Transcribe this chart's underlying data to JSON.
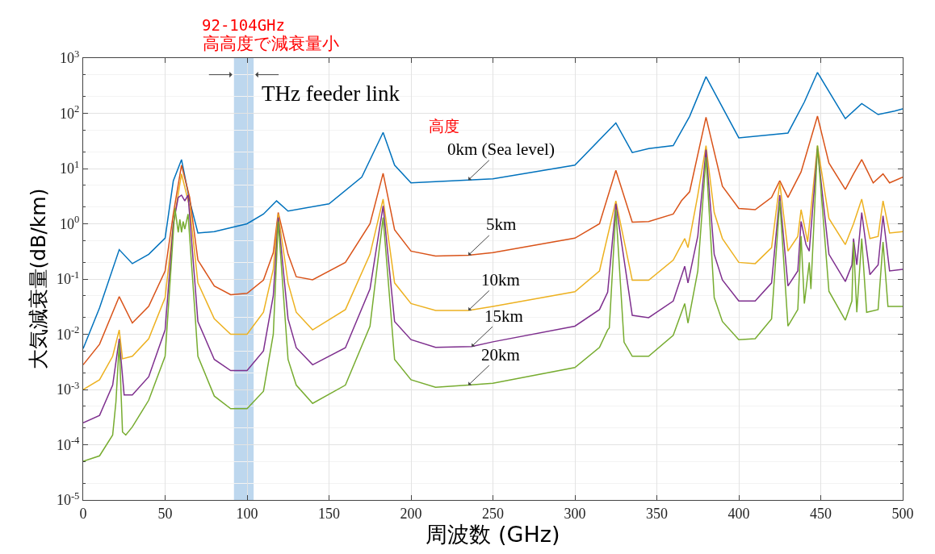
{
  "chart_data": {
    "type": "line",
    "xlabel": "周波数 (GHz)",
    "ylabel": "大気減衰量(dB/km)",
    "xlim": [
      0,
      500
    ],
    "xticks": [
      0,
      50,
      100,
      150,
      200,
      250,
      300,
      350,
      400,
      450,
      500
    ],
    "ylim": [
      1e-05,
      1000
    ],
    "log": true,
    "yticks": [
      {
        "value": 1e-05,
        "label": "10$^{-5}$"
      },
      {
        "value": 0.0001,
        "label": "10$^{-4}$"
      },
      {
        "value": 0.001,
        "label": "10$^{-3}$"
      },
      {
        "value": 0.01,
        "label": "10$^{-2}$"
      },
      {
        "value": 0.1,
        "label": "10$^{-1}$"
      },
      {
        "value": 1,
        "label": "10$^{0}$"
      },
      {
        "value": 10,
        "label": "10$^{1}$"
      },
      {
        "value": 100,
        "label": "10$^{2}$"
      },
      {
        "value": 1000,
        "label": "10$^{3}$"
      }
    ],
    "grid": true,
    "legend": "center",
    "marker": "none",
    "line_style": "solid",
    "bands": [
      {
        "axis": "x",
        "from": 92,
        "to": 104,
        "label": "92-104GHz",
        "color": "#bdd7ee"
      }
    ],
    "annotations": [
      "高高度で減衰量小",
      "THz feeder link",
      "高度"
    ],
    "series": [
      {
        "name": "0km (Sea level)",
        "color": "#0072bd",
        "x": [
          0,
          10,
          22,
          30,
          40,
          50,
          55,
          60,
          65,
          70,
          80,
          100,
          110,
          118,
          125,
          150,
          170,
          183,
          190,
          200,
          235,
          250,
          300,
          325,
          335,
          345,
          360,
          370,
          380,
          400,
          430,
          440,
          448,
          465,
          475,
          485,
          495,
          500
        ],
        "values": [
          0.0055,
          0.03,
          0.34,
          0.19,
          0.28,
          0.55,
          6,
          14.5,
          2.6,
          0.68,
          0.72,
          1.0,
          1.5,
          2.6,
          1.7,
          2.3,
          7,
          45,
          11.5,
          5.5,
          6.2,
          6.5,
          11.5,
          67,
          19.5,
          23,
          26,
          88,
          460,
          36,
          44,
          160,
          550,
          80,
          150,
          95,
          110,
          120
        ]
      },
      {
        "name": "5km",
        "color": "#d95319",
        "x": [
          0,
          10,
          22,
          30,
          40,
          50,
          55,
          60,
          65,
          70,
          80,
          90,
          100,
          110,
          116,
          119,
          125,
          130,
          140,
          160,
          175,
          183,
          190,
          200,
          215,
          235,
          250,
          300,
          315,
          325,
          335,
          345,
          360,
          365,
          370,
          380,
          390,
          400,
          410,
          420,
          425,
          430,
          438,
          448,
          455,
          465,
          470,
          475,
          482,
          488,
          492,
          500
        ],
        "values": [
          0.0028,
          0.0066,
          0.048,
          0.016,
          0.032,
          0.14,
          1.5,
          11.5,
          3,
          0.22,
          0.075,
          0.052,
          0.055,
          0.096,
          0.3,
          1.6,
          0.28,
          0.11,
          0.097,
          0.2,
          1,
          8.2,
          0.78,
          0.32,
          0.26,
          0.27,
          0.3,
          0.55,
          1,
          9.3,
          1.07,
          1.1,
          1.5,
          2.6,
          3.8,
          85,
          4.8,
          1.9,
          1.8,
          3,
          6,
          3,
          8.7,
          89,
          12.6,
          4.2,
          8,
          14.5,
          5.5,
          8,
          5.5,
          7
        ]
      },
      {
        "name": "10km",
        "color": "#edb120",
        "x": [
          0,
          10,
          18,
          22,
          24,
          30,
          40,
          50,
          55,
          60,
          65,
          70,
          80,
          90,
          100,
          110,
          116,
          119,
          125,
          130,
          140,
          160,
          175,
          183,
          190,
          200,
          215,
          235,
          250,
          300,
          315,
          325,
          335,
          345,
          360,
          367,
          369,
          375,
          380,
          385,
          390,
          400,
          410,
          420,
          425,
          430,
          436,
          438,
          442,
          448,
          455,
          465,
          470,
          475,
          480,
          485,
          488,
          492,
          500
        ],
        "values": [
          0.001,
          0.0015,
          0.004,
          0.012,
          0.0036,
          0.004,
          0.0083,
          0.046,
          1,
          8,
          2,
          0.085,
          0.019,
          0.01,
          0.01,
          0.025,
          0.15,
          1.5,
          0.085,
          0.025,
          0.012,
          0.028,
          0.28,
          2.8,
          0.085,
          0.036,
          0.027,
          0.027,
          0.032,
          0.059,
          0.14,
          2.6,
          0.095,
          0.095,
          0.22,
          0.54,
          0.37,
          3.3,
          26,
          1.6,
          0.54,
          0.2,
          0.19,
          0.37,
          5.5,
          0.32,
          0.59,
          1.8,
          0.47,
          26,
          1.25,
          0.42,
          1.0,
          2.8,
          0.54,
          0.59,
          2.6,
          0.68,
          0.72
        ]
      },
      {
        "name": "15km",
        "color": "#7e2f8e",
        "x": [
          0,
          10,
          18,
          22,
          25,
          30,
          40,
          50,
          55,
          58,
          60,
          62,
          64,
          68,
          70,
          80,
          90,
          100,
          110,
          116,
          119,
          125,
          130,
          140,
          160,
          175,
          183,
          190,
          200,
          215,
          237,
          250,
          300,
          315,
          320,
          325,
          335,
          345,
          360,
          367,
          369,
          375,
          380,
          385,
          390,
          400,
          410,
          420,
          425,
          430,
          436,
          438,
          441,
          443,
          448,
          455,
          465,
          469,
          470,
          472,
          475,
          480,
          485,
          488,
          492,
          500
        ],
        "values": [
          0.00025,
          0.00034,
          0.0012,
          0.0083,
          0.0008,
          0.0008,
          0.0017,
          0.012,
          1,
          3,
          3.3,
          2.6,
          3.3,
          0.1,
          0.017,
          0.0035,
          0.0022,
          0.0022,
          0.005,
          0.05,
          1.3,
          0.019,
          0.0057,
          0.0028,
          0.0057,
          0.066,
          2.1,
          0.017,
          0.008,
          0.0058,
          0.006,
          0.0073,
          0.014,
          0.028,
          0.058,
          2.3,
          0.022,
          0.02,
          0.04,
          0.17,
          0.085,
          0.6,
          22,
          0.28,
          0.096,
          0.04,
          0.04,
          0.085,
          3.3,
          0.075,
          0.14,
          1.1,
          0.42,
          0.32,
          23,
          0.28,
          0.09,
          0.18,
          0.54,
          0.18,
          1.6,
          0.12,
          0.18,
          1.4,
          0.14,
          0.15
        ]
      },
      {
        "name": "20km",
        "color": "#77ac30",
        "x": [
          0,
          10,
          18,
          20,
          22,
          24,
          26,
          30,
          40,
          50,
          56,
          58,
          59,
          60,
          61,
          62,
          64,
          68,
          70,
          80,
          90,
          100,
          110,
          116,
          119,
          125,
          130,
          140,
          160,
          175,
          183,
          190,
          200,
          215,
          235,
          250,
          300,
          315,
          320,
          321,
          325,
          330,
          335,
          345,
          360,
          367,
          369,
          375,
          380,
          385,
          390,
          400,
          410,
          420,
          425,
          430,
          436,
          438,
          440,
          443,
          444,
          448,
          455,
          465,
          469,
          470,
          472,
          475,
          478,
          485,
          488,
          491,
          500
        ],
        "values": [
          5e-05,
          6.3e-05,
          0.00015,
          0.0006,
          0.007,
          0.00017,
          0.00015,
          0.00021,
          0.00064,
          0.004,
          1.9,
          0.7,
          1.2,
          0.7,
          1.1,
          0.8,
          1.5,
          0.03,
          0.004,
          0.00076,
          0.00045,
          0.00045,
          0.00093,
          0.01,
          1.1,
          0.0035,
          0.0012,
          0.00056,
          0.0012,
          0.014,
          1.3,
          0.0035,
          0.0015,
          0.0011,
          0.0012,
          0.0013,
          0.0025,
          0.0058,
          0.012,
          0.013,
          1.8,
          0.0072,
          0.004,
          0.004,
          0.0096,
          0.036,
          0.016,
          0.14,
          16,
          0.046,
          0.017,
          0.008,
          0.0083,
          0.019,
          2.6,
          0.014,
          0.028,
          0.6,
          0.036,
          0.2,
          0.066,
          26,
          0.06,
          0.018,
          0.04,
          0.47,
          0.025,
          0.54,
          0.025,
          0.028,
          0.47,
          0.032,
          0.032
        ]
      }
    ]
  }
}
